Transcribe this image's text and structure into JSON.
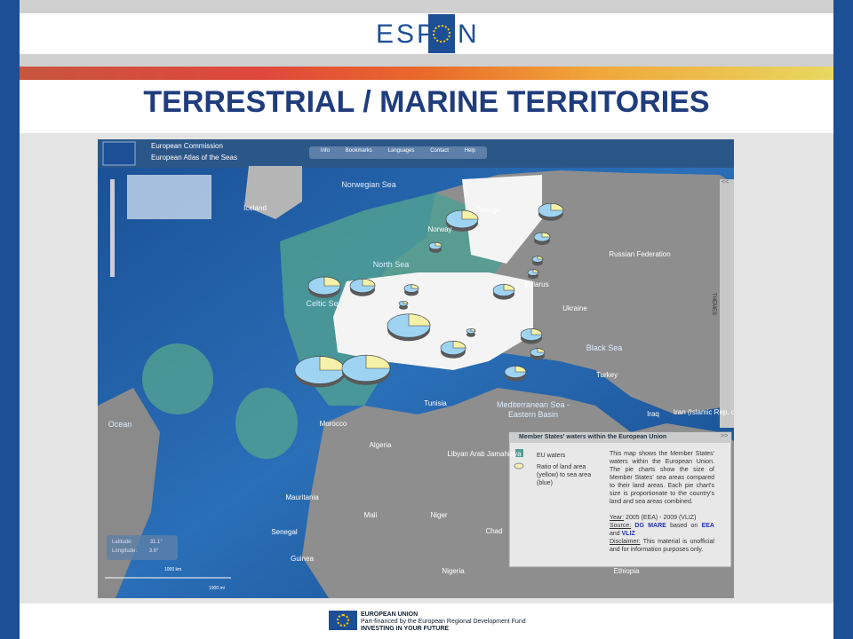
{
  "header": {
    "logo_left": "ESP",
    "logo_right": "N",
    "title": "TERRESTRIAL / MARINE TERRITORIES"
  },
  "app": {
    "org": "European Commission",
    "name": "European Atlas of the Seas",
    "nav": [
      "Info",
      "Bookmarks",
      "Languages",
      "Contact",
      "Help"
    ],
    "themes": "THEMES",
    "collapse": "<<",
    "expand": ">>",
    "map_labels": [
      "Norwegian Sea",
      "Iceland",
      "Sverige",
      "Norway",
      "Russian Federation",
      "North Sea",
      "Belarus",
      "Celtic Sea",
      "Ukraine",
      "Black Sea",
      "Turkey",
      "Mediterranean Sea -",
      "Eastern Basin",
      "Iraq",
      "Iran (Islamic Rep. of)",
      "Tunisia",
      "Morocco",
      "Algeria",
      "Ocean",
      "Libyan Arab Jamahiriya",
      "Mauritania",
      "Mali",
      "Niger",
      "Chad",
      "Senegal",
      "Guinea",
      "Nigeria",
      "Ethiopia"
    ],
    "coords": {
      "lat_label": "Latitude:",
      "lat": "31.1°",
      "lon_label": "Longitude:",
      "lon": "3.6°"
    },
    "scale": {
      "km": "1000 km",
      "mi": "1000 mi"
    },
    "legend": {
      "title": "Member States' waters within the European Union",
      "items": [
        "EU waters",
        "Ratio of land area (yellow) to sea area (blue)"
      ],
      "description": "This map shows the Member States' waters within the European Union. The pie charts show the size of Member States' sea areas compared to their land areas. Each pie chart's size is proportionate to the country's land and sea areas combined.",
      "year_label": "Year:",
      "year": "2005 (EEA) - 2009 (VLIZ)",
      "source_label": "Source:",
      "source": "DG MARE",
      "based_on": "based on",
      "source2": "EEA",
      "and": "and",
      "source3": "VLIZ",
      "disclaimer_label": "Disclaimer:",
      "disclaimer": "This material is unofficial and for information purposes only."
    }
  },
  "footer": {
    "line1": "EUROPEAN UNION",
    "line2": "Part-financed by the European Regional Development Fund",
    "line3": "INVESTING IN YOUR FUTURE"
  }
}
